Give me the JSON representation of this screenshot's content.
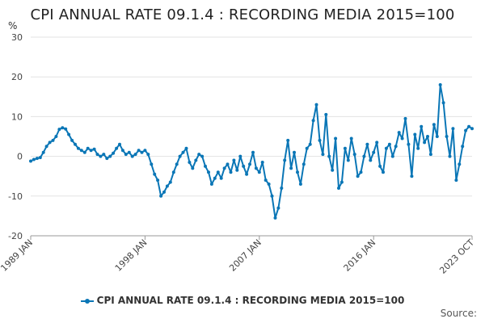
{
  "chart_data": {
    "type": "line",
    "title": "CPI ANNUAL RATE 09.1.4 : RECORDING MEDIA 2015=100",
    "ylabel": "%",
    "ylim": [
      -20,
      30
    ],
    "yticks": [
      -20,
      -10,
      0,
      10,
      20,
      30
    ],
    "xticks": [
      "1989 JAN",
      "1998 JAN",
      "2007 JAN",
      "2016 JAN",
      "2023 OCT"
    ],
    "grid": "horizontal",
    "legend_position": "bottom",
    "series": [
      {
        "name": "CPI ANNUAL RATE 09.1.4 : RECORDING MEDIA 2015=100",
        "color": "#0a76b6",
        "points": [
          [
            "1989 JAN",
            -1.2
          ],
          [
            "1989 APR",
            -0.8
          ],
          [
            "1989 JUL",
            -0.5
          ],
          [
            "1989 OCT",
            -0.3
          ],
          [
            "1990 JAN",
            1.0
          ],
          [
            "1990 APR",
            2.5
          ],
          [
            "1990 JUL",
            3.5
          ],
          [
            "1990 OCT",
            4.0
          ],
          [
            "1991 JAN",
            5.0
          ],
          [
            "1991 APR",
            6.8
          ],
          [
            "1991 JUL",
            7.2
          ],
          [
            "1991 OCT",
            6.9
          ],
          [
            "1992 JAN",
            5.5
          ],
          [
            "1992 APR",
            4.0
          ],
          [
            "1992 JUL",
            3.0
          ],
          [
            "1992 OCT",
            2.0
          ],
          [
            "1993 JAN",
            1.5
          ],
          [
            "1993 APR",
            1.0
          ],
          [
            "1993 JUL",
            2.0
          ],
          [
            "1993 OCT",
            1.5
          ],
          [
            "1994 JAN",
            1.8
          ],
          [
            "1994 APR",
            0.5
          ],
          [
            "1994 JUL",
            0.0
          ],
          [
            "1994 OCT",
            0.5
          ],
          [
            "1995 JAN",
            -0.5
          ],
          [
            "1995 APR",
            0.0
          ],
          [
            "1995 JUL",
            0.8
          ],
          [
            "1995 OCT",
            2.0
          ],
          [
            "1996 JAN",
            3.0
          ],
          [
            "1996 APR",
            1.5
          ],
          [
            "1996 JUL",
            0.5
          ],
          [
            "1996 OCT",
            1.0
          ],
          [
            "1997 JAN",
            0.0
          ],
          [
            "1997 APR",
            0.5
          ],
          [
            "1997 JUL",
            1.5
          ],
          [
            "1997 OCT",
            1.0
          ],
          [
            "1998 JAN",
            1.5
          ],
          [
            "1998 APR",
            0.5
          ],
          [
            "1998 JUL",
            -2.0
          ],
          [
            "1998 OCT",
            -4.5
          ],
          [
            "1999 JAN",
            -6.0
          ],
          [
            "1999 APR",
            -10.0
          ],
          [
            "1999 JUL",
            -9.0
          ],
          [
            "1999 OCT",
            -7.5
          ],
          [
            "2000 JAN",
            -6.5
          ],
          [
            "2000 APR",
            -4.0
          ],
          [
            "2000 JUL",
            -2.0
          ],
          [
            "2000 OCT",
            0.0
          ],
          [
            "2001 JAN",
            1.0
          ],
          [
            "2001 APR",
            2.0
          ],
          [
            "2001 JUL",
            -1.5
          ],
          [
            "2001 OCT",
            -3.0
          ],
          [
            "2002 JAN",
            -1.0
          ],
          [
            "2002 APR",
            0.5
          ],
          [
            "2002 JUL",
            0.0
          ],
          [
            "2002 OCT",
            -2.5
          ],
          [
            "2003 JAN",
            -4.0
          ],
          [
            "2003 APR",
            -7.0
          ],
          [
            "2003 JUL",
            -5.5
          ],
          [
            "2003 OCT",
            -4.0
          ],
          [
            "2004 JAN",
            -5.5
          ],
          [
            "2004 APR",
            -3.0
          ],
          [
            "2004 JUL",
            -2.0
          ],
          [
            "2004 OCT",
            -4.0
          ],
          [
            "2005 JAN",
            -1.0
          ],
          [
            "2005 APR",
            -3.5
          ],
          [
            "2005 JUL",
            0.0
          ],
          [
            "2005 OCT",
            -2.5
          ],
          [
            "2006 JAN",
            -4.5
          ],
          [
            "2006 APR",
            -2.0
          ],
          [
            "2006 JUL",
            1.0
          ],
          [
            "2006 OCT",
            -3.0
          ],
          [
            "2007 JAN",
            -4.0
          ],
          [
            "2007 APR",
            -1.5
          ],
          [
            "2007 JUL",
            -6.0
          ],
          [
            "2007 OCT",
            -7.0
          ],
          [
            "2008 JAN",
            -10.0
          ],
          [
            "2008 APR",
            -15.5
          ],
          [
            "2008 JUL",
            -13.0
          ],
          [
            "2008 OCT",
            -8.0
          ],
          [
            "2009 JAN",
            -1.0
          ],
          [
            "2009 APR",
            4.0
          ],
          [
            "2009 JUL",
            -3.0
          ],
          [
            "2009 OCT",
            1.0
          ],
          [
            "2010 JAN",
            -4.0
          ],
          [
            "2010 APR",
            -7.0
          ],
          [
            "2010 JUL",
            -2.0
          ],
          [
            "2010 OCT",
            2.0
          ],
          [
            "2011 JAN",
            3.0
          ],
          [
            "2011 APR",
            9.0
          ],
          [
            "2011 JUL",
            13.0
          ],
          [
            "2011 OCT",
            4.0
          ],
          [
            "2012 JAN",
            0.5
          ],
          [
            "2012 APR",
            10.5
          ],
          [
            "2012 JUL",
            0.0
          ],
          [
            "2012 OCT",
            -3.5
          ],
          [
            "2013 JAN",
            4.5
          ],
          [
            "2013 APR",
            -8.0
          ],
          [
            "2013 JUL",
            -6.5
          ],
          [
            "2013 OCT",
            2.0
          ],
          [
            "2014 JAN",
            -1.0
          ],
          [
            "2014 APR",
            4.5
          ],
          [
            "2014 JUL",
            0.5
          ],
          [
            "2014 OCT",
            -5.0
          ],
          [
            "2015 JAN",
            -4.0
          ],
          [
            "2015 APR",
            0.0
          ],
          [
            "2015 JUL",
            3.0
          ],
          [
            "2015 OCT",
            -1.0
          ],
          [
            "2016 JAN",
            1.0
          ],
          [
            "2016 APR",
            3.5
          ],
          [
            "2016 JUL",
            -2.5
          ],
          [
            "2016 OCT",
            -4.0
          ],
          [
            "2017 JAN",
            2.0
          ],
          [
            "2017 APR",
            3.0
          ],
          [
            "2017 JUL",
            0.0
          ],
          [
            "2017 OCT",
            2.5
          ],
          [
            "2018 JAN",
            6.0
          ],
          [
            "2018 APR",
            4.5
          ],
          [
            "2018 JUL",
            9.5
          ],
          [
            "2018 OCT",
            3.0
          ],
          [
            "2019 JAN",
            -5.0
          ],
          [
            "2019 APR",
            5.5
          ],
          [
            "2019 JUL",
            2.0
          ],
          [
            "2019 OCT",
            7.5
          ],
          [
            "2020 JAN",
            3.5
          ],
          [
            "2020 APR",
            5.0
          ],
          [
            "2020 JUL",
            0.5
          ],
          [
            "2020 OCT",
            8.0
          ],
          [
            "2021 JAN",
            5.0
          ],
          [
            "2021 APR",
            18.0
          ],
          [
            "2021 JUL",
            13.5
          ],
          [
            "2021 OCT",
            5.0
          ],
          [
            "2022 JAN",
            0.0
          ],
          [
            "2022 APR",
            7.0
          ],
          [
            "2022 JUL",
            -6.0
          ],
          [
            "2022 OCT",
            -2.0
          ],
          [
            "2023 JAN",
            2.5
          ],
          [
            "2023 APR",
            6.5
          ],
          [
            "2023 JUL",
            7.5
          ],
          [
            "2023 OCT",
            7.0
          ]
        ]
      }
    ],
    "source": "Source:"
  }
}
